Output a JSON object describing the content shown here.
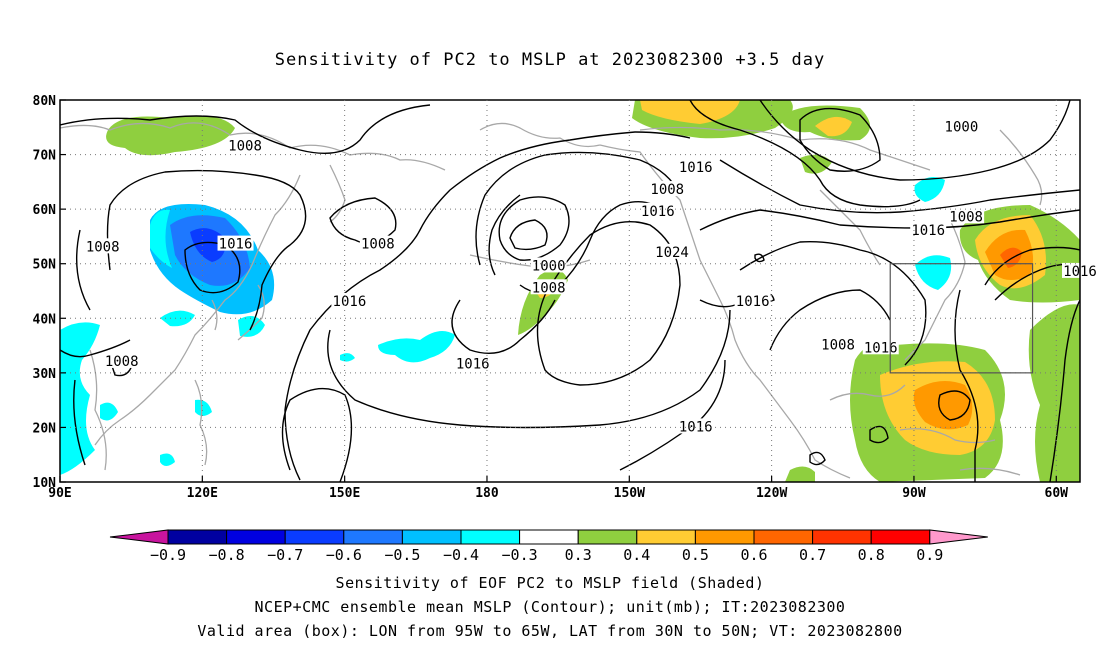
{
  "title": "Sensitivity of PC2 to MSLP at 2023082300 +3.5 day",
  "captions": {
    "line1": "Sensitivity of EOF PC2 to MSLP field (Shaded)",
    "line2": "NCEP+CMC ensemble mean MSLP (Contour); unit(mb); IT:2023082300",
    "line3": "Valid area (box): LON from 95W to 65W, LAT from 30N to 50N; VT: 2023082800"
  },
  "map": {
    "lon_ticks": [
      "90E",
      "120E",
      "150E",
      "180",
      "150W",
      "120W",
      "90W",
      "60W"
    ],
    "lat_ticks": [
      "80N",
      "70N",
      "60N",
      "50N",
      "40N",
      "30N",
      "20N",
      "10N"
    ],
    "lon_range": [
      90,
      305
    ],
    "lat_range": [
      10,
      80
    ],
    "valid_box": {
      "lon": [
        265,
        295
      ],
      "lat": [
        30,
        50
      ]
    },
    "contour_labels": [
      {
        "text": "1008",
        "lon": 129,
        "lat": 71.5
      },
      {
        "text": "1008",
        "lon": 99,
        "lat": 53
      },
      {
        "text": "1016",
        "lon": 127,
        "lat": 53.5
      },
      {
        "text": "1008",
        "lon": 103,
        "lat": 32
      },
      {
        "text": "1008",
        "lon": 157,
        "lat": 53.5
      },
      {
        "text": "1016",
        "lon": 151,
        "lat": 43
      },
      {
        "text": "1016",
        "lon": 177,
        "lat": 31.5
      },
      {
        "text": "1016",
        "lon": 224,
        "lat": 67.5
      },
      {
        "text": "1008",
        "lon": 218,
        "lat": 63.5
      },
      {
        "text": "1016",
        "lon": 216,
        "lat": 59.5
      },
      {
        "text": "1024",
        "lon": 219,
        "lat": 52
      },
      {
        "text": "1000",
        "lon": 193,
        "lat": 49.5
      },
      {
        "text": "1008",
        "lon": 193,
        "lat": 45.5
      },
      {
        "text": "1016",
        "lon": 236,
        "lat": 43
      },
      {
        "text": "1008",
        "lon": 254,
        "lat": 35
      },
      {
        "text": "1016",
        "lon": 263,
        "lat": 34.5
      },
      {
        "text": "1016",
        "lon": 224,
        "lat": 20
      },
      {
        "text": "1000",
        "lon": 280,
        "lat": 75
      },
      {
        "text": "1008",
        "lon": 281,
        "lat": 58.5
      },
      {
        "text": "1016",
        "lon": 273,
        "lat": 56
      },
      {
        "text": "1016",
        "lon": 305,
        "lat": 48.5
      }
    ]
  },
  "colorbar": {
    "labels": [
      "-0.9",
      "-0.8",
      "-0.7",
      "-0.6",
      "-0.5",
      "-0.4",
      "-0.3",
      "0.3",
      "0.4",
      "0.5",
      "0.6",
      "0.7",
      "0.8",
      "0.9"
    ],
    "colors": [
      "#0000a0",
      "#0000e0",
      "#0a3cff",
      "#1e78ff",
      "#00c0ff",
      "#00ffff",
      "#ffffff",
      "#8fcf3f",
      "#ffcc33",
      "#ff9900",
      "#ff6600",
      "#ff3300",
      "#ff0000"
    ],
    "left_tip": "#c8149e",
    "right_tip": "#ff99cc"
  },
  "colors": {
    "green": "#8fcf3f",
    "yellow": "#ffcc33",
    "orange": "#ff9900",
    "darkorange": "#ff6600",
    "cyan": "#00ffff",
    "lightblue": "#00c0ff",
    "blue": "#1e78ff",
    "darkblue": "#0a3cff",
    "coast": "#a8a8a8",
    "contour": "#000000"
  }
}
